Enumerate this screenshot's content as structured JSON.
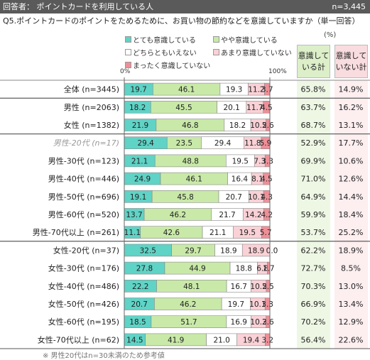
{
  "header": {
    "title": "回答者：  ポイントカードを利用している人",
    "n": "n=3,445"
  },
  "question": "Q5.ポイントカードのポイントをためるために、お買い物の節約などを意識していますか（単一回答）",
  "unit": "(%)",
  "axis": {
    "left": "0%",
    "right": "100%"
  },
  "legend": [
    {
      "label": "とても意識している",
      "color": "#5fd3c6"
    },
    {
      "label": "やや意識している",
      "color": "#c9e9a8"
    },
    {
      "label": "どちらともいえない",
      "color": "#ffffff"
    },
    {
      "label": "あまり意識していない",
      "color": "#fad1d6"
    },
    {
      "label": "まったく意識していない",
      "color": "#ee8f98"
    }
  ],
  "columns": {
    "aware": "意識している計",
    "unaware": "意識していない計"
  },
  "footnote": "※ 男性20代はn=30未満のため参考値",
  "chart_data": {
    "type": "bar",
    "orientation": "horizontal-stacked-100",
    "categories": [
      "全体 (n=3445)",
      "男性 (n=2063)",
      "女性 (n=1382)",
      "男性-20代 (n=17)",
      "男性-30代 (n=123)",
      "男性-40代 (n=446)",
      "男性-50代 (n=696)",
      "男性-60代 (n=520)",
      "男性-70代以上 (n=261)",
      "女性-20代 (n=37)",
      "女性-30代 (n=176)",
      "女性-40代 (n=486)",
      "女性-50代 (n=426)",
      "女性-60代 (n=195)",
      "女性-70代以上 (n=62)"
    ],
    "series": [
      {
        "name": "とても意識している",
        "values": [
          19.7,
          18.2,
          21.9,
          29.4,
          21.1,
          24.9,
          19.1,
          13.7,
          11.1,
          32.5,
          27.8,
          22.2,
          20.7,
          18.5,
          14.5
        ]
      },
      {
        "name": "やや意識している",
        "values": [
          46.1,
          45.5,
          46.8,
          23.5,
          48.8,
          46.1,
          45.8,
          46.2,
          42.6,
          29.7,
          44.9,
          48.1,
          46.2,
          51.7,
          41.9
        ]
      },
      {
        "name": "どちらともいえない",
        "values": [
          19.3,
          20.1,
          18.2,
          29.4,
          19.5,
          16.4,
          20.7,
          21.7,
          21.1,
          18.9,
          18.8,
          16.7,
          19.7,
          16.9,
          21.0
        ]
      },
      {
        "name": "あまり意識していない",
        "values": [
          11.2,
          11.7,
          10.5,
          11.8,
          7.3,
          8.1,
          10.1,
          14.2,
          19.5,
          18.9,
          6.8,
          10.5,
          10.1,
          10.3,
          19.4
        ]
      },
      {
        "name": "まったく意識していない",
        "values": [
          3.7,
          4.5,
          2.6,
          5.9,
          3.3,
          4.5,
          4.3,
          4.2,
          5.7,
          0.0,
          1.7,
          2.5,
          3.3,
          2.6,
          3.2
        ]
      }
    ],
    "aware_total": [
      65.8,
      63.7,
      68.7,
      52.9,
      69.9,
      71.0,
      64.9,
      59.9,
      53.7,
      62.2,
      72.7,
      70.3,
      66.9,
      70.2,
      56.4
    ],
    "unaware_total": [
      14.9,
      16.2,
      13.1,
      17.7,
      10.6,
      12.6,
      14.4,
      18.4,
      25.2,
      18.9,
      8.5,
      13.0,
      13.4,
      12.9,
      22.6
    ],
    "reference_rows": [
      3
    ],
    "xlim": [
      0,
      100
    ]
  }
}
